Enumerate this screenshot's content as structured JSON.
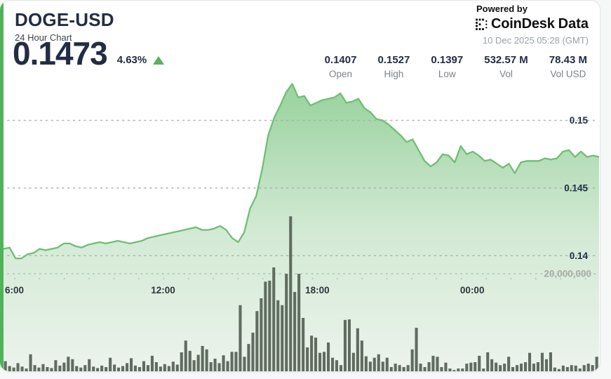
{
  "header": {
    "symbol": "DOGE-USD",
    "subtitle": "24 Hour Chart",
    "price": "0.1473",
    "change_pct": "4.63%",
    "powered_by": "Powered by",
    "brand_coindesk": "CoinDesk",
    "brand_data": "Data",
    "timestamp": "10 Dec 2025 05:28 (GMT)",
    "stats": [
      {
        "value": "0.1407",
        "label": "Open"
      },
      {
        "value": "0.1527",
        "label": "High"
      },
      {
        "value": "0.1397",
        "label": "Low"
      },
      {
        "value": "532.57 M",
        "label": "Vol"
      },
      {
        "value": "78.43 M",
        "label": "Vol USD"
      }
    ]
  },
  "colors": {
    "accent_green": "#4fb35a",
    "line_green": "#6fbe74",
    "area_top": "#9ad29e",
    "area_mid": "#cfe8d1",
    "area_bottom": "#edf3ed",
    "volume_bar": "#5f6c5f",
    "grid_dots": "#a3ada3",
    "text_dark": "#222c44",
    "text_gray": "#7c828c"
  },
  "chart_data": {
    "type": "area+bar",
    "title": "DOGE-USD 24 Hour Chart",
    "legend_position": "none",
    "grid": "dotted horizontal",
    "price_ylim": [
      0.1314,
      0.1534
    ],
    "volume_ylim": [
      0,
      60.6
    ],
    "y_ticks_price": [
      {
        "label": "0.15",
        "value": 0.15
      },
      {
        "label": "0.145",
        "value": 0.145
      },
      {
        "label": "0.14",
        "value": 0.14
      }
    ],
    "y_tick_volume": {
      "label": "20,000,000",
      "value": 20
    },
    "x_ticks": [
      {
        "label": "6:00",
        "pos": 0.016
      },
      {
        "label": "12:00",
        "pos": 0.268
      },
      {
        "label": "18:00",
        "pos": 0.527
      },
      {
        "label": "00:00",
        "pos": 0.787
      }
    ],
    "price_series": {
      "name": "DOGE-USD price (USD)",
      "evenly_spaced": true,
      "values": [
        0.1405,
        0.1406,
        0.1398,
        0.1398,
        0.1401,
        0.1402,
        0.1405,
        0.1404,
        0.1405,
        0.1406,
        0.1409,
        0.1409,
        0.1407,
        0.1406,
        0.1408,
        0.1409,
        0.141,
        0.1409,
        0.141,
        0.1411,
        0.141,
        0.1409,
        0.141,
        0.1411,
        0.1413,
        0.1414,
        0.1415,
        0.1416,
        0.1417,
        0.1418,
        0.1419,
        0.142,
        0.1421,
        0.1419,
        0.1419,
        0.142,
        0.1422,
        0.1419,
        0.1413,
        0.141,
        0.1417,
        0.1435,
        0.1444,
        0.1464,
        0.1489,
        0.1502,
        0.1511,
        0.1521,
        0.1527,
        0.1517,
        0.1518,
        0.1511,
        0.1513,
        0.1515,
        0.1516,
        0.1517,
        0.152,
        0.1513,
        0.1514,
        0.1516,
        0.1509,
        0.1506,
        0.1501,
        0.15,
        0.1497,
        0.1493,
        0.1489,
        0.1484,
        0.1486,
        0.1478,
        0.147,
        0.1466,
        0.1469,
        0.1475,
        0.1474,
        0.1469,
        0.1481,
        0.1475,
        0.1477,
        0.1474,
        0.147,
        0.1471,
        0.1468,
        0.1465,
        0.1468,
        0.1461,
        0.1469,
        0.147,
        0.147,
        0.147,
        0.1472,
        0.1471,
        0.1472,
        0.1477,
        0.1478,
        0.1473,
        0.1477,
        0.1473,
        0.1474,
        0.1473
      ]
    },
    "volume_series": {
      "name": "Volume (millions)",
      "values": [
        2.2,
        1.2,
        0.9,
        1.8,
        1.1,
        0.7,
        3.6,
        1.4,
        0.9,
        1.6,
        1.0,
        0.8,
        2.4,
        1.3,
        1.9,
        3.1,
        2.6,
        1.2,
        0.9,
        1.4,
        2.6,
        1.1,
        0.8,
        1.3,
        1.0,
        2.9,
        1.5,
        0.9,
        1.2,
        1.8,
        2.8,
        1.3,
        1.0,
        2.2,
        1.4,
        3.3,
        2.0,
        1.1,
        1.6,
        1.2,
        2.1,
        1.5,
        4.0,
        6.4,
        4.3,
        2.4,
        3.5,
        5.3,
        4.6,
        2.0,
        2.7,
        1.8,
        3.4,
        2.2,
        4.1,
        4.1,
        13.6,
        3.1,
        5.7,
        8.0,
        12.4,
        15.0,
        18.4,
        18.6,
        21.3,
        14.6,
        13.6,
        20.0,
        31.7,
        16.3,
        20.0,
        11.0,
        5.0,
        7.4,
        7.0,
        3.9,
        4.1,
        6.0,
        2.9,
        2.4,
        1.4,
        10.6,
        10.7,
        3.9,
        8.9,
        6.4,
        3.2,
        2.1,
        2.9,
        3.6,
        2.1,
        2.9,
        1.0,
        1.7,
        1.4,
        1.0,
        1.4,
        4.6,
        9.0,
        1.7,
        1.0,
        2.0,
        3.3,
        3.1,
        1.0,
        1.9,
        0.7,
        0.4,
        0.7,
        0.7,
        1.7,
        1.9,
        2.0,
        3.3,
        0.7,
        4.0,
        2.6,
        1.9,
        1.4,
        1.7,
        3.1,
        1.0,
        1.4,
        1.7,
        2.0,
        3.9,
        1.7,
        2.0,
        3.9,
        2.6,
        4.0,
        0.9,
        0.6,
        1.3,
        1.0,
        1.4,
        1.3,
        0.7,
        1.4,
        1.7,
        1.4,
        3.1
      ]
    }
  }
}
